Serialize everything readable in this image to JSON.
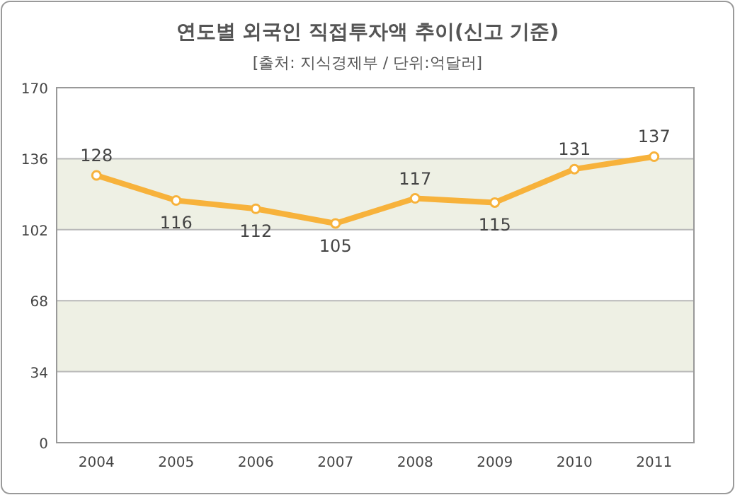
{
  "chart_data": {
    "type": "line",
    "title": "연도별 외국인 직접투자액 추이(신고 기준)",
    "subtitle": "[출처: 지식경제부 / 단위:억달러]",
    "categories": [
      "2004",
      "2005",
      "2006",
      "2007",
      "2008",
      "2009",
      "2010",
      "2011"
    ],
    "series": [
      {
        "color": "#f7b23b",
        "values": [
          128,
          116,
          112,
          105,
          117,
          115,
          131,
          137
        ]
      }
    ],
    "ylim": [
      0,
      170
    ],
    "yticks": [
      0,
      34,
      68,
      102,
      136,
      170
    ],
    "grid": "y",
    "marker": "circle",
    "data_labels": true
  }
}
